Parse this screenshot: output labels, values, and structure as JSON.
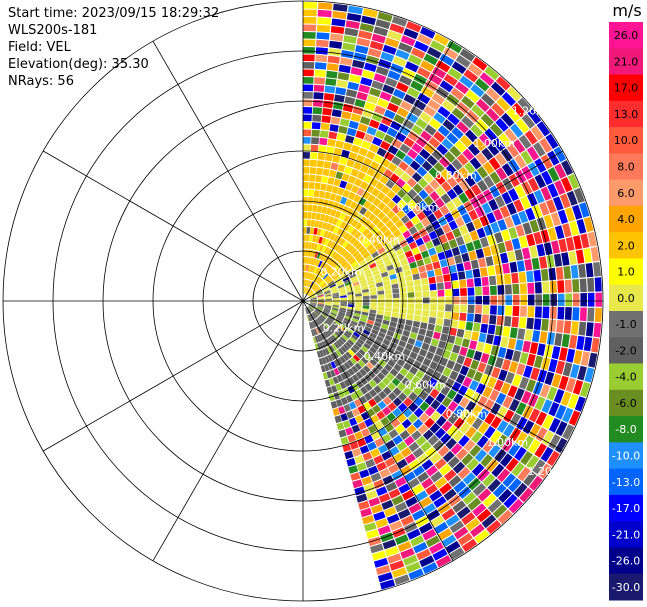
{
  "header": {
    "start_time": "Start time: 2023/09/15 18:29:32",
    "instrument": "WLS200s-181",
    "field": "Field: VEL",
    "elevation": "Elevation(deg): 35.30",
    "nrays": "NRays: 56"
  },
  "chart_data": {
    "type": "ppi",
    "field": "VEL",
    "units": "m/s",
    "ring_labels": [
      "0.20km",
      "0.40km",
      "0.60km",
      "0.80km",
      "1.00km",
      "1.20km"
    ],
    "range_max_km": 1.2,
    "azimuth_sector_deg": [
      0,
      165
    ],
    "nrays": 56,
    "colorbar": {
      "title": "m/s",
      "ticks": [
        "26.0",
        "21.0",
        "17.0",
        "13.0",
        "10.0",
        "8.0",
        "6.0",
        "4.0",
        "2.0",
        "1.0",
        "0.0",
        "-1.0",
        "-2.0",
        "-4.0",
        "-6.0",
        "-8.0",
        "-10.0",
        "-13.0",
        "-17.0",
        "-21.0",
        "-26.0",
        "-30.0"
      ],
      "colors": [
        "#ff1493",
        "#f0197a",
        "#ff0000",
        "#ff2d2d",
        "#ff5a3c",
        "#ff7a5a",
        "#ff9a6a",
        "#ffa500",
        "#ffc400",
        "#ffff00",
        "#e8e84a",
        "#707070",
        "#606060",
        "#9acd32",
        "#6b8e23",
        "#228b22",
        "#1e90ff",
        "#0064ff",
        "#0000ff",
        "#0000cd",
        "#00008b",
        "#191970"
      ]
    }
  }
}
